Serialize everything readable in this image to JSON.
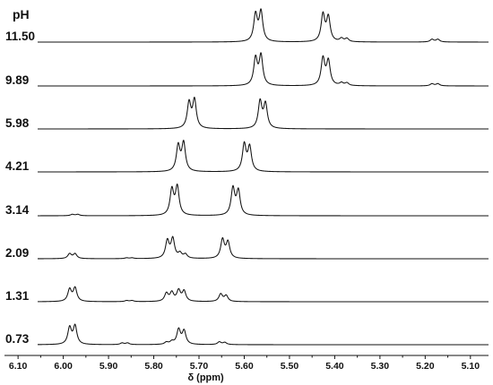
{
  "chart_data": {
    "type": "line",
    "title": "",
    "series_label_header": "pH",
    "xlabel": "δ (ppm)",
    "ylabel": "",
    "xlim": [
      6.13,
      5.06
    ],
    "x_reversed": true,
    "grid": false,
    "ticks": [
      6.1,
      6.0,
      5.9,
      5.8,
      5.7,
      5.6,
      5.5,
      5.4,
      5.3,
      5.2,
      5.1
    ],
    "tick_labels": [
      "6.10",
      "6.00",
      "5.90",
      "5.80",
      "5.70",
      "5.60",
      "5.50",
      "5.40",
      "5.30",
      "5.20",
      "5.10"
    ],
    "series": [
      {
        "name": "11.50",
        "peaks": [
          {
            "x": 5.575,
            "h": 1.0
          },
          {
            "x": 5.563,
            "h": 1.1
          },
          {
            "x": 5.426,
            "h": 1.0
          },
          {
            "x": 5.414,
            "h": 0.9
          },
          {
            "x": 5.385,
            "h": 0.12
          },
          {
            "x": 5.373,
            "h": 0.12
          },
          {
            "x": 5.185,
            "h": 0.1
          },
          {
            "x": 5.172,
            "h": 0.1
          }
        ]
      },
      {
        "name": "9.89",
        "peaks": [
          {
            "x": 5.575,
            "h": 1.0
          },
          {
            "x": 5.563,
            "h": 1.1
          },
          {
            "x": 5.426,
            "h": 1.0
          },
          {
            "x": 5.414,
            "h": 0.9
          },
          {
            "x": 5.385,
            "h": 0.1
          },
          {
            "x": 5.373,
            "h": 0.1
          },
          {
            "x": 5.185,
            "h": 0.08
          },
          {
            "x": 5.172,
            "h": 0.08
          }
        ]
      },
      {
        "name": "5.98",
        "peaks": [
          {
            "x": 5.722,
            "h": 0.95
          },
          {
            "x": 5.71,
            "h": 1.05
          },
          {
            "x": 5.565,
            "h": 1.0
          },
          {
            "x": 5.553,
            "h": 0.9
          }
        ]
      },
      {
        "name": "4.21",
        "peaks": [
          {
            "x": 5.746,
            "h": 0.95
          },
          {
            "x": 5.734,
            "h": 1.05
          },
          {
            "x": 5.6,
            "h": 1.0
          },
          {
            "x": 5.588,
            "h": 0.9
          }
        ]
      },
      {
        "name": "3.14",
        "peaks": [
          {
            "x": 5.98,
            "h": 0.05
          },
          {
            "x": 5.968,
            "h": 0.05
          },
          {
            "x": 5.76,
            "h": 0.95
          },
          {
            "x": 5.748,
            "h": 1.05
          },
          {
            "x": 5.625,
            "h": 1.0
          },
          {
            "x": 5.613,
            "h": 0.9
          }
        ]
      },
      {
        "name": "2.09",
        "peaks": [
          {
            "x": 5.986,
            "h": 0.18
          },
          {
            "x": 5.974,
            "h": 0.18
          },
          {
            "x": 5.86,
            "h": 0.03
          },
          {
            "x": 5.848,
            "h": 0.03
          },
          {
            "x": 5.77,
            "h": 0.65
          },
          {
            "x": 5.758,
            "h": 0.72
          },
          {
            "x": 5.742,
            "h": 0.18
          },
          {
            "x": 5.73,
            "h": 0.15
          },
          {
            "x": 5.648,
            "h": 0.7
          },
          {
            "x": 5.636,
            "h": 0.6
          }
        ]
      },
      {
        "name": "1.31",
        "peaks": [
          {
            "x": 5.986,
            "h": 0.45
          },
          {
            "x": 5.974,
            "h": 0.5
          },
          {
            "x": 5.86,
            "h": 0.04
          },
          {
            "x": 5.848,
            "h": 0.04
          },
          {
            "x": 5.772,
            "h": 0.3
          },
          {
            "x": 5.76,
            "h": 0.32
          },
          {
            "x": 5.745,
            "h": 0.4
          },
          {
            "x": 5.733,
            "h": 0.38
          },
          {
            "x": 5.652,
            "h": 0.28
          },
          {
            "x": 5.64,
            "h": 0.22
          }
        ]
      },
      {
        "name": "0.73",
        "peaks": [
          {
            "x": 5.986,
            "h": 0.62
          },
          {
            "x": 5.974,
            "h": 0.68
          },
          {
            "x": 5.87,
            "h": 0.06
          },
          {
            "x": 5.858,
            "h": 0.06
          },
          {
            "x": 5.772,
            "h": 0.08
          },
          {
            "x": 5.76,
            "h": 0.1
          },
          {
            "x": 5.745,
            "h": 0.55
          },
          {
            "x": 5.733,
            "h": 0.5
          },
          {
            "x": 5.655,
            "h": 0.1
          },
          {
            "x": 5.643,
            "h": 0.08
          }
        ]
      }
    ]
  }
}
